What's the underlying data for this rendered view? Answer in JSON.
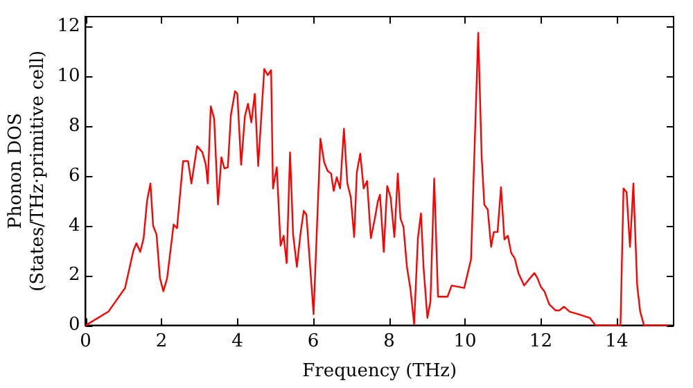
{
  "chart_data": {
    "type": "line",
    "xlabel": "Frequency (THz)",
    "ylabel": "Phonon DOS\n(States/THz·primitive cell)",
    "xlim": [
      0,
      15.5
    ],
    "ylim": [
      0,
      12.4
    ],
    "xticks": [
      0,
      2,
      4,
      6,
      8,
      10,
      12,
      14
    ],
    "yticks": [
      0,
      2,
      4,
      6,
      8,
      10,
      12
    ],
    "grid": false,
    "legend": false,
    "marker": "none",
    "line_style": "solid",
    "series": [
      {
        "color": "#ff0000",
        "x": [
          0,
          0.6,
          1.04,
          1.26,
          1.34,
          1.44,
          1.53,
          1.62,
          1.71,
          1.78,
          1.87,
          1.96,
          2.05,
          2.15,
          2.32,
          2.41,
          2.57,
          2.7,
          2.79,
          2.94,
          3.08,
          3.17,
          3.22,
          3.3,
          3.39,
          3.49,
          3.58,
          3.66,
          3.75,
          3.83,
          3.94,
          4.0,
          4.1,
          4.2,
          4.28,
          4.37,
          4.46,
          4.55,
          4.71,
          4.8,
          4.89,
          4.94,
          5.04,
          5.14,
          5.22,
          5.3,
          5.39,
          5.47,
          5.57,
          5.67,
          5.75,
          5.82,
          6.01,
          6.19,
          6.29,
          6.38,
          6.47,
          6.54,
          6.62,
          6.71,
          6.81,
          6.9,
          6.99,
          7.08,
          7.15,
          7.24,
          7.33,
          7.42,
          7.52,
          7.62,
          7.7,
          7.76,
          7.86,
          7.95,
          8.04,
          8.14,
          8.23,
          8.3,
          8.38,
          8.47,
          8.56,
          8.66,
          8.76,
          8.84,
          8.91,
          9.01,
          9.09,
          9.19,
          9.29,
          9.54,
          9.65,
          9.98,
          10.16,
          10.35,
          10.44,
          10.51,
          10.6,
          10.69,
          10.76,
          10.86,
          10.95,
          11.04,
          11.13,
          11.22,
          11.31,
          11.41,
          11.56,
          11.69,
          11.83,
          11.91,
          12.0,
          12.1,
          12.22,
          12.39,
          12.49,
          12.61,
          12.76,
          12.98,
          13.29,
          13.44,
          14.1,
          14.18,
          14.26,
          14.35,
          14.44,
          14.54,
          14.62,
          14.72,
          15.36
        ],
        "values": [
          0,
          0.55,
          1.5,
          3.0,
          3.3,
          2.95,
          3.5,
          5.0,
          5.7,
          4.0,
          3.65,
          1.9,
          1.37,
          1.9,
          4.05,
          3.9,
          6.6,
          6.6,
          5.7,
          7.2,
          6.95,
          6.45,
          5.7,
          8.8,
          8.3,
          4.85,
          6.75,
          6.3,
          6.35,
          8.45,
          9.4,
          9.3,
          6.45,
          8.4,
          8.9,
          8.15,
          9.3,
          6.4,
          10.3,
          10.05,
          10.25,
          5.5,
          6.35,
          3.2,
          3.6,
          2.5,
          6.95,
          3.65,
          2.35,
          3.75,
          4.6,
          4.45,
          0.45,
          7.5,
          6.55,
          6.2,
          6.1,
          5.4,
          5.95,
          5.5,
          7.9,
          5.7,
          5.15,
          3.55,
          6.15,
          6.9,
          5.5,
          5.8,
          3.5,
          4.25,
          4.95,
          5.25,
          2.95,
          5.6,
          5.15,
          3.55,
          6.1,
          4.3,
          3.95,
          2.35,
          1.5,
          0.05,
          3.5,
          4.5,
          2.3,
          0.3,
          0.95,
          5.9,
          1.15,
          1.15,
          1.6,
          1.5,
          2.65,
          11.75,
          6.8,
          4.85,
          4.65,
          3.15,
          3.75,
          3.75,
          5.55,
          3.45,
          3.6,
          2.9,
          2.7,
          2.1,
          1.6,
          1.85,
          2.1,
          1.9,
          1.55,
          1.35,
          0.85,
          0.6,
          0.6,
          0.75,
          0.55,
          0.45,
          0.3,
          0,
          0,
          5.5,
          5.35,
          3.15,
          5.7,
          1.6,
          0.55,
          0,
          0
        ]
      }
    ]
  }
}
